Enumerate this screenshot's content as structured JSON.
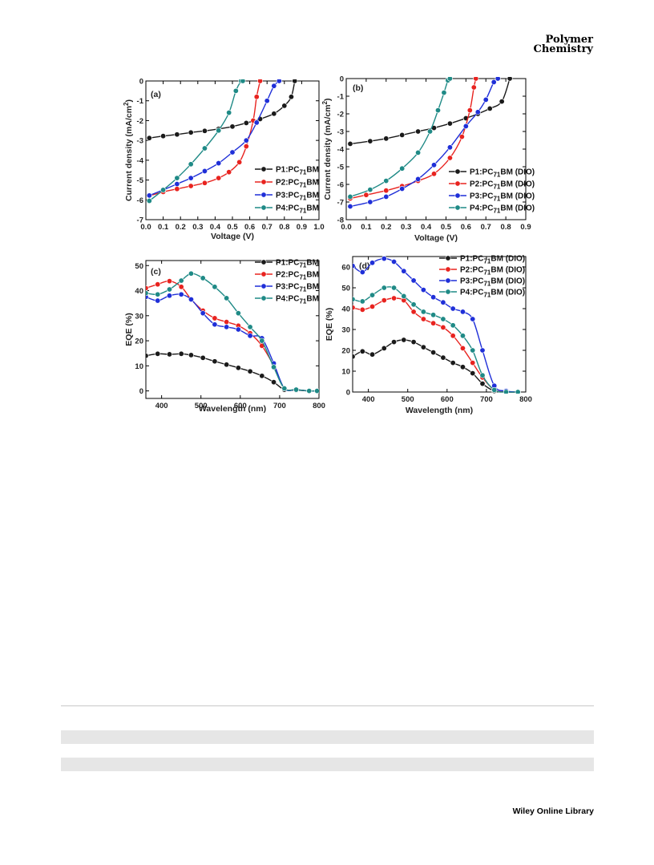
{
  "header": {
    "journal_line1": "Polymer",
    "journal_line2": "Chemistry"
  },
  "footer": {
    "publisher": "Wiley Online Library"
  },
  "series_colors": {
    "P1": "#1a1a1a",
    "P2": "#e8231f",
    "P3": "#1f2fd8",
    "P4": "#1f8a86"
  },
  "chart_data": [
    {
      "panel": "(a)",
      "type": "line",
      "xlabel": "Voltage (V)",
      "ylabel": "Current density (mA/cm2)",
      "xlim": [
        0.0,
        1.0
      ],
      "ylim": [
        -7,
        0
      ],
      "xticks": [
        "0.0",
        "0.1",
        "0.2",
        "0.3",
        "0.4",
        "0.5",
        "0.6",
        "0.7",
        "0.8",
        "0.9",
        "1.0"
      ],
      "yticks": [
        "0",
        "-1",
        "-2",
        "-3",
        "-4",
        "-5",
        "-6",
        "-7"
      ],
      "legend_position": "bottom-right",
      "series": [
        {
          "name": "P1:PC71BM",
          "key": "P1",
          "x": [
            0.02,
            0.1,
            0.18,
            0.26,
            0.34,
            0.42,
            0.5,
            0.58,
            0.66,
            0.74,
            0.8,
            0.84,
            0.86
          ],
          "y": [
            -2.88,
            -2.78,
            -2.7,
            -2.6,
            -2.52,
            -2.42,
            -2.3,
            -2.12,
            -1.92,
            -1.65,
            -1.25,
            -0.8,
            0.0
          ]
        },
        {
          "name": "P2:PC71BM",
          "key": "P2",
          "x": [
            0.02,
            0.1,
            0.18,
            0.26,
            0.34,
            0.42,
            0.48,
            0.54,
            0.58,
            0.62,
            0.64,
            0.66
          ],
          "y": [
            -5.8,
            -5.6,
            -5.45,
            -5.3,
            -5.15,
            -4.9,
            -4.6,
            -4.1,
            -3.3,
            -2.0,
            -0.8,
            0.0
          ]
        },
        {
          "name": "P3:PC71BM",
          "key": "P3",
          "x": [
            0.02,
            0.1,
            0.18,
            0.26,
            0.34,
            0.42,
            0.5,
            0.58,
            0.64,
            0.7,
            0.74,
            0.77
          ],
          "y": [
            -5.78,
            -5.5,
            -5.2,
            -4.9,
            -4.55,
            -4.15,
            -3.6,
            -3.0,
            -2.1,
            -1.0,
            -0.25,
            0.0
          ]
        },
        {
          "name": "P4:PC71BM",
          "key": "P4",
          "x": [
            0.02,
            0.1,
            0.18,
            0.26,
            0.34,
            0.42,
            0.48,
            0.52,
            0.55,
            0.56
          ],
          "y": [
            -6.05,
            -5.5,
            -4.9,
            -4.2,
            -3.4,
            -2.5,
            -1.6,
            -0.5,
            0.0,
            0.0
          ]
        }
      ]
    },
    {
      "panel": "(b)",
      "type": "line",
      "xlabel": "Voltage (V)",
      "ylabel": "Current density (mA/cm2)",
      "xlim": [
        0.0,
        0.9
      ],
      "ylim": [
        -8,
        0
      ],
      "xticks": [
        "0.0",
        "0.1",
        "0.2",
        "0.3",
        "0.4",
        "0.5",
        "0.6",
        "0.7",
        "0.8",
        "0.9"
      ],
      "yticks": [
        "0",
        "-1",
        "-2",
        "-3",
        "-4",
        "-5",
        "-6",
        "-7",
        "-8"
      ],
      "legend_position": "bottom-right",
      "series": [
        {
          "name": "P1:PC71BM (DIO)",
          "key": "P1",
          "x": [
            0.02,
            0.12,
            0.2,
            0.28,
            0.36,
            0.44,
            0.52,
            0.6,
            0.66,
            0.72,
            0.78,
            0.82
          ],
          "y": [
            -3.7,
            -3.55,
            -3.4,
            -3.2,
            -3.0,
            -2.8,
            -2.55,
            -2.25,
            -2.0,
            -1.7,
            -1.3,
            0.0
          ]
        },
        {
          "name": "P2:PC71BM (DIO)",
          "key": "P2",
          "x": [
            0.02,
            0.1,
            0.2,
            0.28,
            0.36,
            0.44,
            0.52,
            0.58,
            0.62,
            0.64,
            0.65
          ],
          "y": [
            -6.8,
            -6.6,
            -6.35,
            -6.1,
            -5.8,
            -5.4,
            -4.5,
            -3.3,
            -1.8,
            -0.5,
            0.0
          ]
        },
        {
          "name": "P3:PC71BM (DIO)",
          "key": "P3",
          "x": [
            0.02,
            0.12,
            0.2,
            0.28,
            0.36,
            0.44,
            0.52,
            0.6,
            0.66,
            0.7,
            0.74,
            0.76
          ],
          "y": [
            -7.25,
            -7.0,
            -6.7,
            -6.25,
            -5.7,
            -4.9,
            -3.9,
            -2.7,
            -1.9,
            -1.2,
            -0.2,
            0.0
          ]
        },
        {
          "name": "P4:PC71BM (DIO)",
          "key": "P4",
          "x": [
            0.02,
            0.12,
            0.2,
            0.28,
            0.36,
            0.42,
            0.46,
            0.49,
            0.51,
            0.52
          ],
          "y": [
            -6.7,
            -6.3,
            -5.8,
            -5.1,
            -4.2,
            -3.0,
            -1.8,
            -0.8,
            -0.1,
            0.0
          ]
        }
      ]
    },
    {
      "panel": "(c)",
      "type": "line",
      "xlabel": "Wavelength (nm)",
      "ylabel": "EQE (%)",
      "xlim": [
        360,
        800
      ],
      "ylim": [
        -3,
        52
      ],
      "xticks": [
        "400",
        "500",
        "600",
        "700",
        "800"
      ],
      "yticks": [
        "0",
        "10",
        "20",
        "30",
        "40",
        "50"
      ],
      "legend_position": "top-right",
      "series": [
        {
          "name": "P1:PC71BM",
          "key": "P1",
          "x": [
            360,
            390,
            420,
            450,
            475,
            505,
            535,
            565,
            595,
            625,
            655,
            685,
            712,
            742,
            775,
            795
          ],
          "y": [
            14,
            14.8,
            14.6,
            14.8,
            14.3,
            13.2,
            11.8,
            10.5,
            9.2,
            7.8,
            6.0,
            3.5,
            0.5,
            0.3,
            0,
            0
          ]
        },
        {
          "name": "P2:PC71BM",
          "key": "P2",
          "x": [
            360,
            390,
            420,
            450,
            475,
            505,
            535,
            565,
            595,
            625,
            655,
            685,
            712,
            742,
            775,
            795
          ],
          "y": [
            41,
            42.5,
            43.8,
            41.5,
            36.5,
            32,
            29,
            27.5,
            26,
            23,
            18,
            10,
            1,
            0.5,
            0,
            0
          ]
        },
        {
          "name": "P3:PC71BM",
          "key": "P3",
          "x": [
            360,
            390,
            420,
            450,
            475,
            505,
            535,
            565,
            595,
            625,
            655,
            685,
            712,
            742,
            775,
            795
          ],
          "y": [
            37.5,
            36,
            38,
            38.5,
            36.5,
            31,
            26.5,
            25.5,
            24.5,
            22,
            21,
            11,
            1,
            0.5,
            0,
            0
          ]
        },
        {
          "name": "P4:PC71BM",
          "key": "P4",
          "x": [
            360,
            390,
            420,
            450,
            475,
            505,
            535,
            565,
            595,
            625,
            655,
            685,
            712,
            742,
            775,
            795
          ],
          "y": [
            39,
            38.5,
            40.5,
            44,
            46.8,
            45,
            41.5,
            37,
            31,
            25.5,
            20,
            9.5,
            1,
            0.5,
            0,
            0
          ]
        }
      ]
    },
    {
      "panel": "(d)",
      "type": "line",
      "xlabel": "Wavelength (nm)",
      "ylabel": "EQE (%)",
      "xlim": [
        360,
        800
      ],
      "ylim": [
        0,
        65
      ],
      "xticks": [
        "400",
        "500",
        "600",
        "700",
        "800"
      ],
      "yticks": [
        "0",
        "10",
        "20",
        "30",
        "40",
        "50",
        "60"
      ],
      "legend_position": "top-right",
      "series": [
        {
          "name": "P1:PC71BM (DIO)",
          "key": "P1",
          "x": [
            360,
            385,
            410,
            440,
            465,
            490,
            515,
            540,
            565,
            590,
            615,
            640,
            665,
            690,
            720,
            750,
            780
          ],
          "y": [
            17,
            19.5,
            18,
            21,
            24,
            25,
            24,
            21.5,
            19,
            16.5,
            14,
            12,
            9,
            4,
            0.5,
            0,
            0
          ]
        },
        {
          "name": "P2:PC71BM (DIO)",
          "key": "P2",
          "x": [
            360,
            385,
            410,
            440,
            465,
            490,
            515,
            540,
            565,
            590,
            615,
            640,
            665,
            690,
            720,
            750,
            780
          ],
          "y": [
            40.5,
            39.5,
            41,
            44,
            45,
            44,
            38.5,
            35,
            33,
            31,
            27,
            21,
            14,
            7,
            1,
            0,
            0
          ]
        },
        {
          "name": "P3:PC71BM (DIO)",
          "key": "P3",
          "x": [
            360,
            385,
            410,
            440,
            465,
            490,
            515,
            540,
            565,
            590,
            615,
            640,
            665,
            690,
            720,
            750,
            780
          ],
          "y": [
            60.5,
            57.5,
            62,
            64,
            62.5,
            58,
            53.5,
            49,
            45.5,
            43,
            40,
            38.5,
            35,
            20,
            3,
            0.5,
            0
          ]
        },
        {
          "name": "P4:PC71BM (DIO)",
          "key": "P4",
          "x": [
            360,
            385,
            410,
            440,
            465,
            490,
            515,
            540,
            565,
            590,
            615,
            640,
            665,
            690,
            720,
            750,
            780
          ],
          "y": [
            44.5,
            43.5,
            46.5,
            50,
            50,
            46,
            42,
            38.5,
            37,
            35,
            32,
            27,
            20,
            8,
            1,
            0,
            0
          ]
        }
      ]
    }
  ]
}
